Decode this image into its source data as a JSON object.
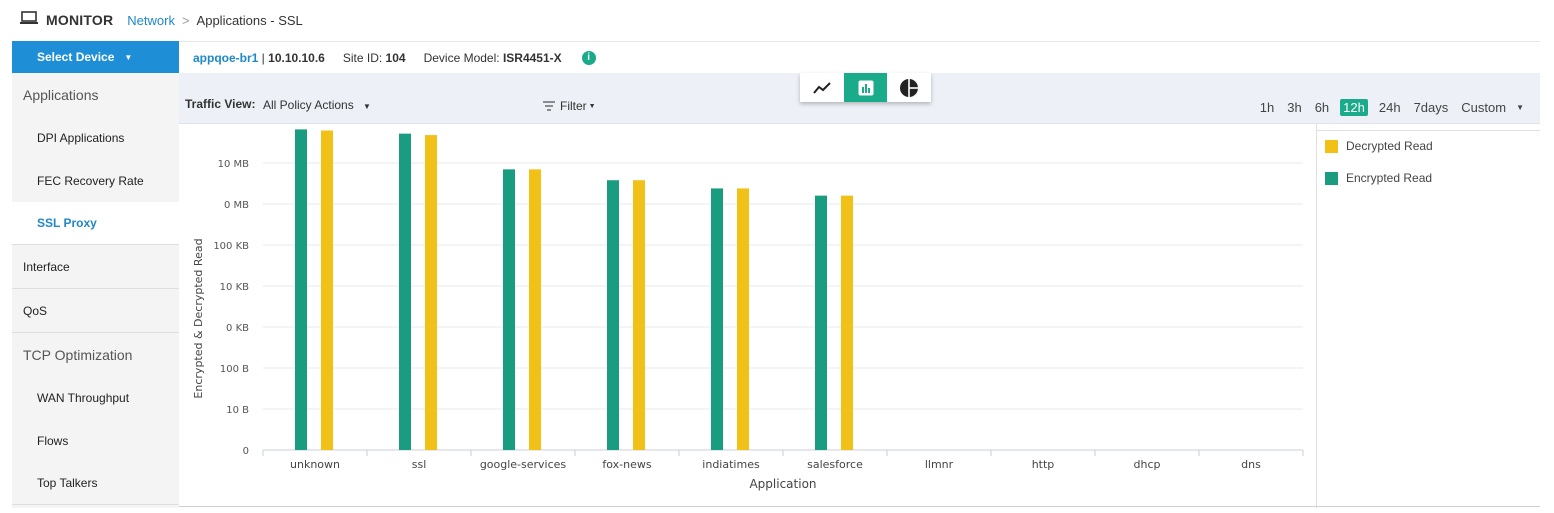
{
  "header": {
    "monitor_label": "MONITOR",
    "breadcrumb_link": "Network",
    "breadcrumb_sep": ">",
    "breadcrumb_current": "Applications - SSL"
  },
  "sidebar": {
    "select_device": "Select Device",
    "items": [
      {
        "label": "Applications",
        "kind": "section"
      },
      {
        "label": "DPI Applications",
        "kind": "sub"
      },
      {
        "label": "FEC Recovery Rate",
        "kind": "sub"
      },
      {
        "label": "SSL Proxy",
        "kind": "sub",
        "active": true
      },
      {
        "label": "Interface",
        "kind": "plain"
      },
      {
        "label": "QoS",
        "kind": "plain"
      },
      {
        "label": "TCP Optimization",
        "kind": "section"
      },
      {
        "label": "WAN Throughput",
        "kind": "sub"
      },
      {
        "label": "Flows",
        "kind": "sub"
      },
      {
        "label": "Top Talkers",
        "kind": "sub"
      }
    ]
  },
  "device": {
    "hostname": "appqoe-br1",
    "separator": " | ",
    "ip": "10.10.10.6",
    "site_label": "Site ID: ",
    "site_id": "104",
    "model_label": "Device Model: ",
    "model": "ISR4451-X",
    "info_icon": "i"
  },
  "controls": {
    "traffic_view_label": "Traffic View:",
    "traffic_view_value": "All Policy Actions",
    "filter_label": "Filter",
    "view_icons": [
      "line-chart-icon",
      "bar-chart-icon",
      "pie-chart-icon"
    ],
    "active_view": "bar-chart-icon",
    "time_options": [
      "1h",
      "3h",
      "6h",
      "12h",
      "24h",
      "7days",
      "Custom"
    ],
    "active_time": "12h"
  },
  "colors": {
    "accent": "#1aab8b",
    "decrypted": "#f2c118",
    "encrypted": "#1a9c81",
    "brand_blue": "#1e8fd6"
  },
  "legend": [
    {
      "label": "Decrypted Read",
      "color": "#f2c118"
    },
    {
      "label": "Encrypted Read",
      "color": "#1a9c81"
    }
  ],
  "chart_data": {
    "type": "bar",
    "xlabel": "Application",
    "ylabel": "Encrypted & Decrypted Read",
    "y_ticks": [
      "0",
      "10 B",
      "100 B",
      "0 KB",
      "10 KB",
      "100 KB",
      "0 MB",
      "10 MB"
    ],
    "y_scale": "log",
    "categories": [
      "unknown",
      "ssl",
      "google-services",
      "fox-news",
      "indiatimes",
      "salesforce",
      "llmnr",
      "http",
      "dhcp",
      "dns"
    ],
    "series": [
      {
        "name": "Encrypted Read",
        "values": [
          66000000,
          52000000,
          7000000,
          3800000,
          2400000,
          1600000,
          0,
          0,
          0,
          0
        ]
      },
      {
        "name": "Decrypted Read",
        "values": [
          62000000,
          48000000,
          7000000,
          3800000,
          2400000,
          1600000,
          0,
          0,
          0,
          0
        ]
      }
    ]
  }
}
